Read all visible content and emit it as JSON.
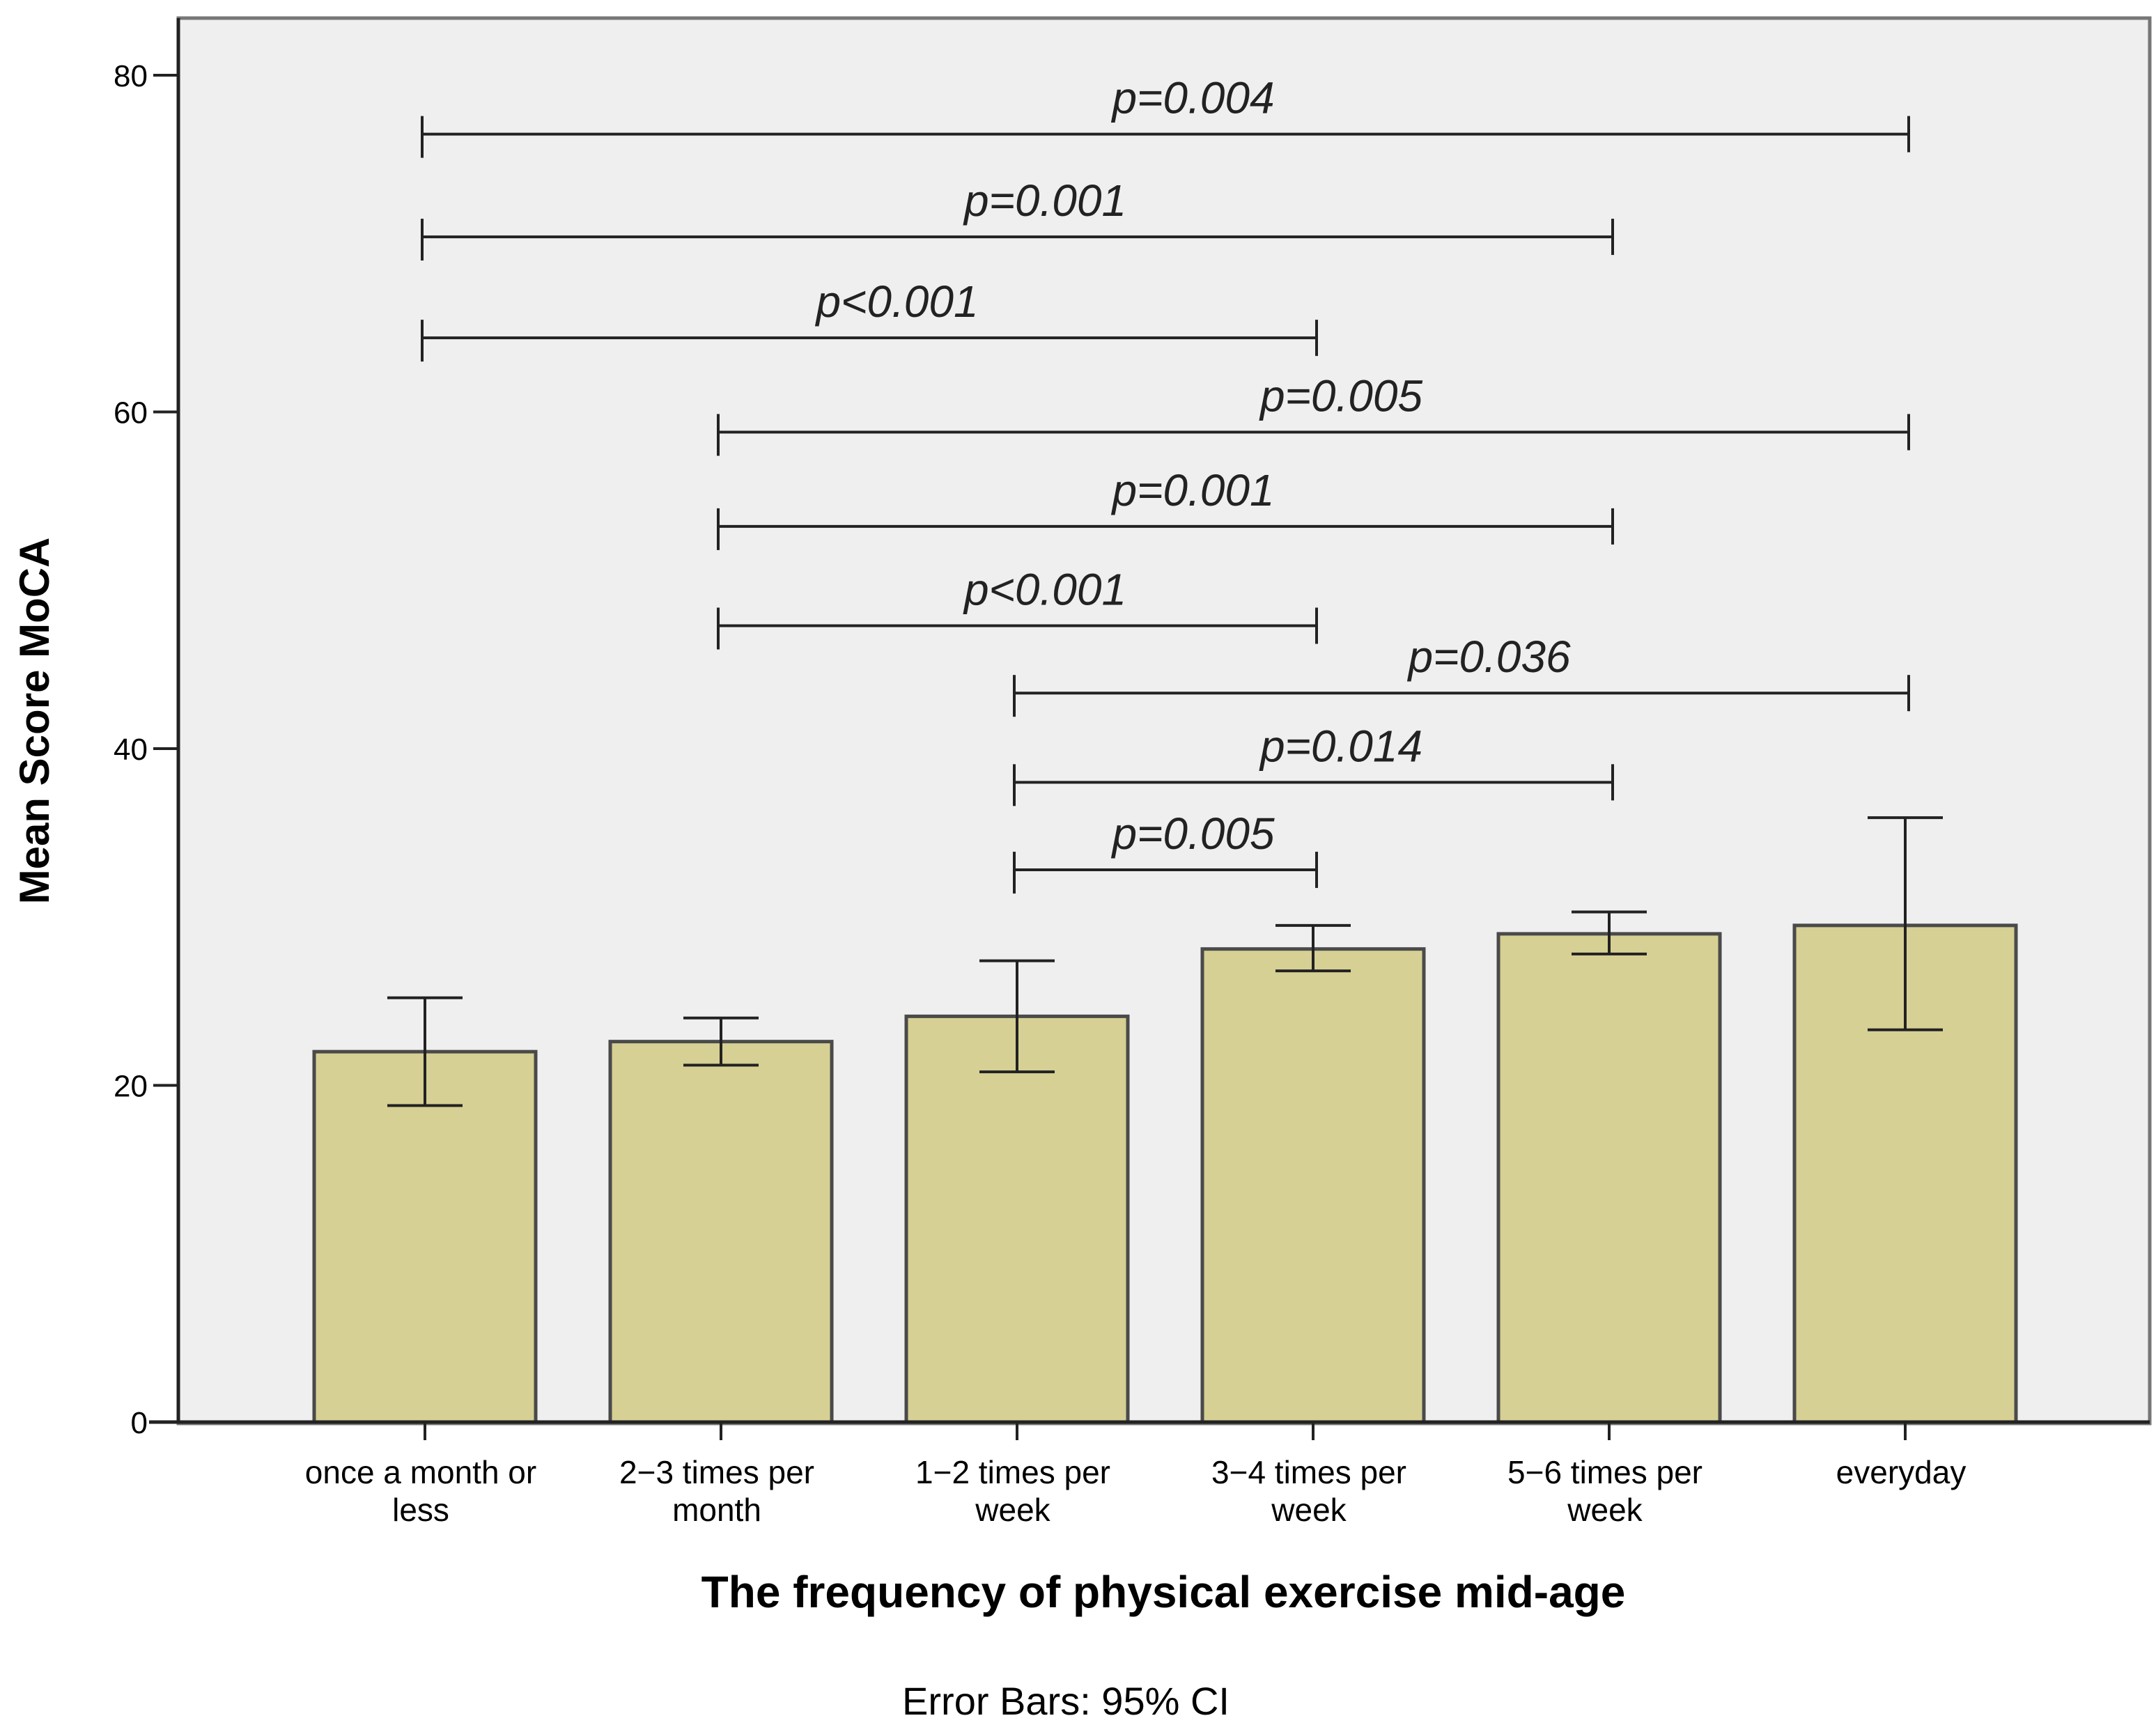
{
  "chart_data": {
    "type": "bar",
    "title": "",
    "xlabel": "The frequency of physical exercise mid-age",
    "ylabel": "Mean Score MoCA",
    "footnote": "Error Bars: 95% CI",
    "ylim": [
      0,
      80
    ],
    "yticks": [
      0,
      20,
      40,
      60,
      80
    ],
    "grid": false,
    "categories": [
      [
        "once a month or",
        "less"
      ],
      [
        "2−3 times per",
        "month"
      ],
      [
        "1−2 times per",
        "week"
      ],
      [
        "3−4 times per",
        "week"
      ],
      [
        "5−6 times per",
        "week"
      ],
      [
        "everyday"
      ]
    ],
    "values": [
      22.0,
      22.6,
      24.1,
      28.1,
      29.0,
      29.5
    ],
    "ci_lower": [
      18.8,
      21.2,
      20.8,
      26.8,
      27.8,
      23.3
    ],
    "ci_upper": [
      25.2,
      24.0,
      27.4,
      29.5,
      30.3,
      35.9
    ],
    "bar_color": "#d6d094",
    "plot_background": "#efefef",
    "comparisons": [
      {
        "from": 0,
        "to": 5,
        "y": 76.5,
        "label": "p=0.004"
      },
      {
        "from": 0,
        "to": 4,
        "y": 70.4,
        "label": "p=0.001"
      },
      {
        "from": 0,
        "to": 3,
        "y": 64.4,
        "label": "p<0.001"
      },
      {
        "from": 1,
        "to": 5,
        "y": 58.8,
        "label": "p=0.005"
      },
      {
        "from": 1,
        "to": 4,
        "y": 53.2,
        "label": "p=0.001"
      },
      {
        "from": 1,
        "to": 3,
        "y": 47.3,
        "label": "p<0.001"
      },
      {
        "from": 2,
        "to": 5,
        "y": 43.3,
        "label": "p=0.036"
      },
      {
        "from": 2,
        "to": 4,
        "y": 38.0,
        "label": "p=0.014"
      },
      {
        "from": 2,
        "to": 3,
        "y": 32.8,
        "label": "p=0.005"
      }
    ]
  }
}
